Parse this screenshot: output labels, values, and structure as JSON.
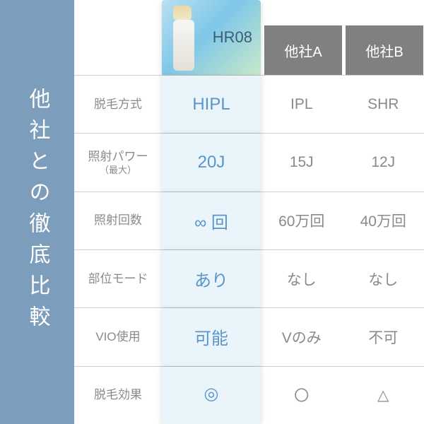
{
  "heading": "他社との徹底比較",
  "colors": {
    "headingBg": "#7d9dbc",
    "headingText": "#ffffff",
    "otherHeaderBg": "#808080",
    "labelText": "#8a8a8a",
    "dataText": "#8a8a8a",
    "grid": "#d0d0d0",
    "heroRowBg": "#eaf4fb",
    "heroText": "#5a95c8"
  },
  "columns": {
    "hero": "HR08",
    "a": "他社A",
    "b": "他社B"
  },
  "rows": [
    {
      "label": "脱毛方式",
      "hero": "HIPL",
      "a": "IPL",
      "b": "SHR"
    },
    {
      "label": "照射パワー",
      "sublabel": "（最大）",
      "hero": "20J",
      "a": "15J",
      "b": "12J"
    },
    {
      "label": "照射回数",
      "hero": "∞ 回",
      "a": "60万回",
      "b": "40万回"
    },
    {
      "label": "部位モード",
      "hero": "あり",
      "a": "なし",
      "b": "なし"
    },
    {
      "label": "VIO使用",
      "hero": "可能",
      "a": "Vのみ",
      "b": "不可"
    },
    {
      "label": "脱毛効果",
      "hero": "◎",
      "a": "〇",
      "b": "△",
      "symbol": true
    }
  ]
}
